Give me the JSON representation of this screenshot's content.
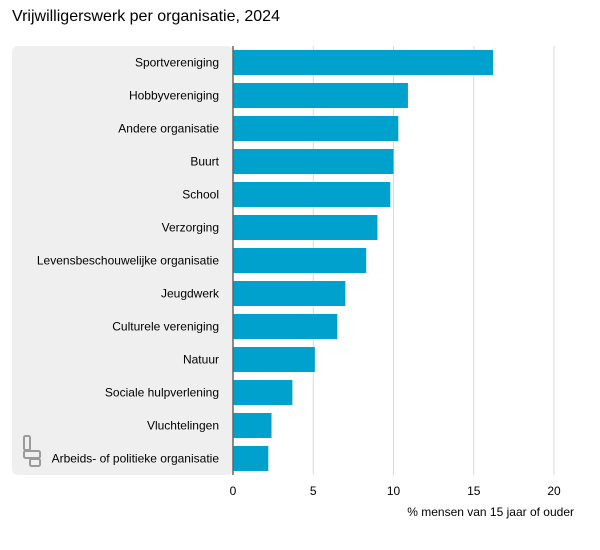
{
  "title": "Vrijwilligerswerk per organisatie, 2024",
  "colors": {
    "bar": "#00a1cd",
    "panel": "#efefef",
    "grid": "#d9d9d9",
    "axis": "#666666",
    "logo": "#9a9a9a"
  },
  "icons": {
    "logo": "cbs-logo-icon"
  },
  "chart_data": {
    "type": "bar",
    "orientation": "horizontal",
    "title": "Vrijwilligerswerk per organisatie, 2024",
    "xlabel": "% mensen van 15 jaar of ouder",
    "ylabel": "",
    "xlim": [
      0,
      20
    ],
    "xticks": [
      0,
      5,
      10,
      15,
      20
    ],
    "grid": true,
    "categories": [
      "Sportvereniging",
      "Hobbyvereniging",
      "Andere organisatie",
      "Buurt",
      "School",
      "Verzorging",
      "Levensbeschouwelijke organisatie",
      "Jeugdwerk",
      "Culturele vereniging",
      "Natuur",
      "Sociale hulpverlening",
      "Vluchtelingen",
      "Arbeids- of politieke organisatie"
    ],
    "values": [
      16.2,
      10.9,
      10.3,
      10.0,
      9.8,
      9.0,
      8.3,
      7.0,
      6.5,
      5.1,
      3.7,
      2.4,
      2.2
    ]
  }
}
